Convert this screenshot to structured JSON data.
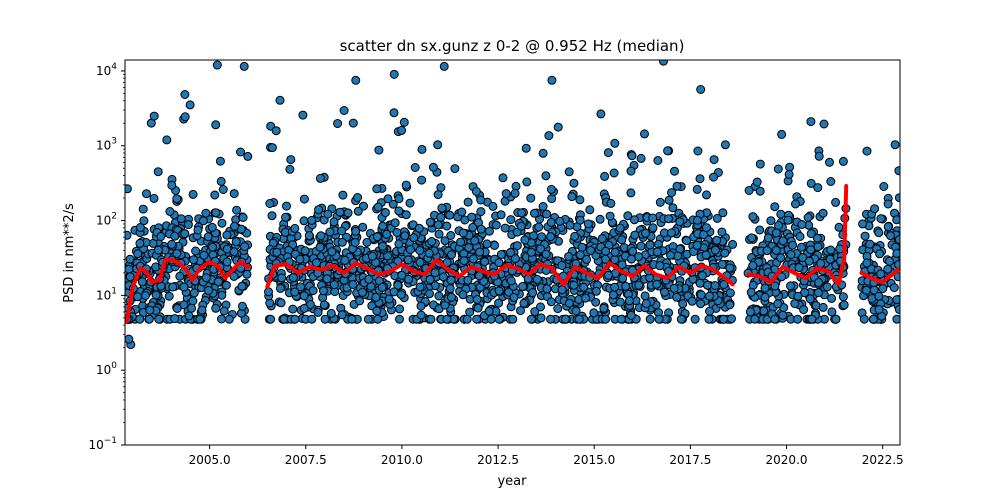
{
  "chart_data": {
    "type": "scatter",
    "title": "scatter dn sx.gunz z 0-2 @ 0.952 Hz (median)",
    "xlabel": "year",
    "ylabel": "PSD in nm**2/s",
    "xlim": [
      2002.8,
      2022.95
    ],
    "ylim": [
      0.1,
      14000
    ],
    "yscale": "log",
    "grid": false,
    "x_ticks": [
      2005.0,
      2007.5,
      2010.0,
      2012.5,
      2015.0,
      2017.5,
      2020.0,
      2022.5
    ],
    "x_tick_labels": [
      "2005.0",
      "2007.5",
      "2010.0",
      "2012.5",
      "2015.0",
      "2017.5",
      "2020.0",
      "2022.5"
    ],
    "y_ticks": [
      0.1,
      1,
      10,
      100,
      1000,
      10000
    ],
    "y_tick_labels": [
      "10",
      "10",
      "10",
      "10",
      "10",
      "10"
    ],
    "y_tick_exponents": [
      "−1",
      "0",
      "1",
      "2",
      "3",
      "4"
    ],
    "colors": {
      "points": "#1f77b4",
      "point_edge": "#000000",
      "median": "#ff0000"
    },
    "data_segments": [
      [
        2002.85,
        2006.0
      ],
      [
        2006.5,
        2018.6
      ],
      [
        2019.0,
        2021.55
      ],
      [
        2021.95,
        2022.95
      ]
    ],
    "series": [
      {
        "type": "scatter",
        "point_distribution": {
          "typical_range": [
            5,
            300
          ],
          "extreme_outliers": [
            {
              "x": 2005.9,
              "y": 11500
            },
            {
              "x": 2005.2,
              "y": 12000
            },
            {
              "x": 2008.8,
              "y": 7500
            },
            {
              "x": 2009.8,
              "y": 9000
            },
            {
              "x": 2011.1,
              "y": 11500
            },
            {
              "x": 2013.9,
              "y": 7500
            },
            {
              "x": 2016.8,
              "y": 13500
            },
            {
              "x": 2002.95,
              "y": 2.2
            },
            {
              "x": 2002.9,
              "y": 2.6
            }
          ]
        }
      },
      {
        "type": "line",
        "x": [
          2002.85,
          2003.0,
          2003.2,
          2003.35,
          2003.5,
          2003.7,
          2003.85,
          2004.0,
          2004.2,
          2004.4,
          2004.55,
          2004.75,
          2005.0,
          2005.2,
          2005.4,
          2005.6,
          2005.8,
          2006.0,
          2006.5,
          2006.7,
          2007.0,
          2007.3,
          2007.6,
          2007.9,
          2008.2,
          2008.5,
          2008.8,
          2009.1,
          2009.4,
          2009.7,
          2010.0,
          2010.3,
          2010.6,
          2010.9,
          2011.2,
          2011.5,
          2011.8,
          2012.1,
          2012.4,
          2012.7,
          2013.0,
          2013.3,
          2013.6,
          2013.9,
          2014.2,
          2014.5,
          2014.8,
          2015.1,
          2015.4,
          2015.7,
          2016.0,
          2016.3,
          2016.6,
          2016.9,
          2017.2,
          2017.5,
          2017.8,
          2018.1,
          2018.4,
          2018.6,
          2019.0,
          2019.3,
          2019.6,
          2019.9,
          2020.2,
          2020.5,
          2020.8,
          2021.1,
          2021.35,
          2021.5,
          2021.55,
          2021.95,
          2022.2,
          2022.5,
          2022.75,
          2022.95
        ],
        "y": [
          4.5,
          13,
          23,
          21,
          15,
          16,
          30,
          30,
          27,
          22,
          16,
          23,
          28,
          25,
          17,
          22,
          28,
          24,
          13,
          25,
          26,
          20,
          24,
          22,
          25,
          20,
          27,
          23,
          19,
          21,
          26,
          21,
          19,
          30,
          22,
          18,
          24,
          21,
          19,
          25,
          23,
          19,
          26,
          23,
          14,
          24,
          20,
          17,
          27,
          21,
          18,
          25,
          19,
          17,
          24,
          20,
          25,
          22,
          17,
          14,
          19,
          18,
          15,
          24,
          20,
          17,
          23,
          21,
          14,
          30,
          290,
          20,
          17,
          15,
          19,
          23
        ]
      }
    ]
  }
}
